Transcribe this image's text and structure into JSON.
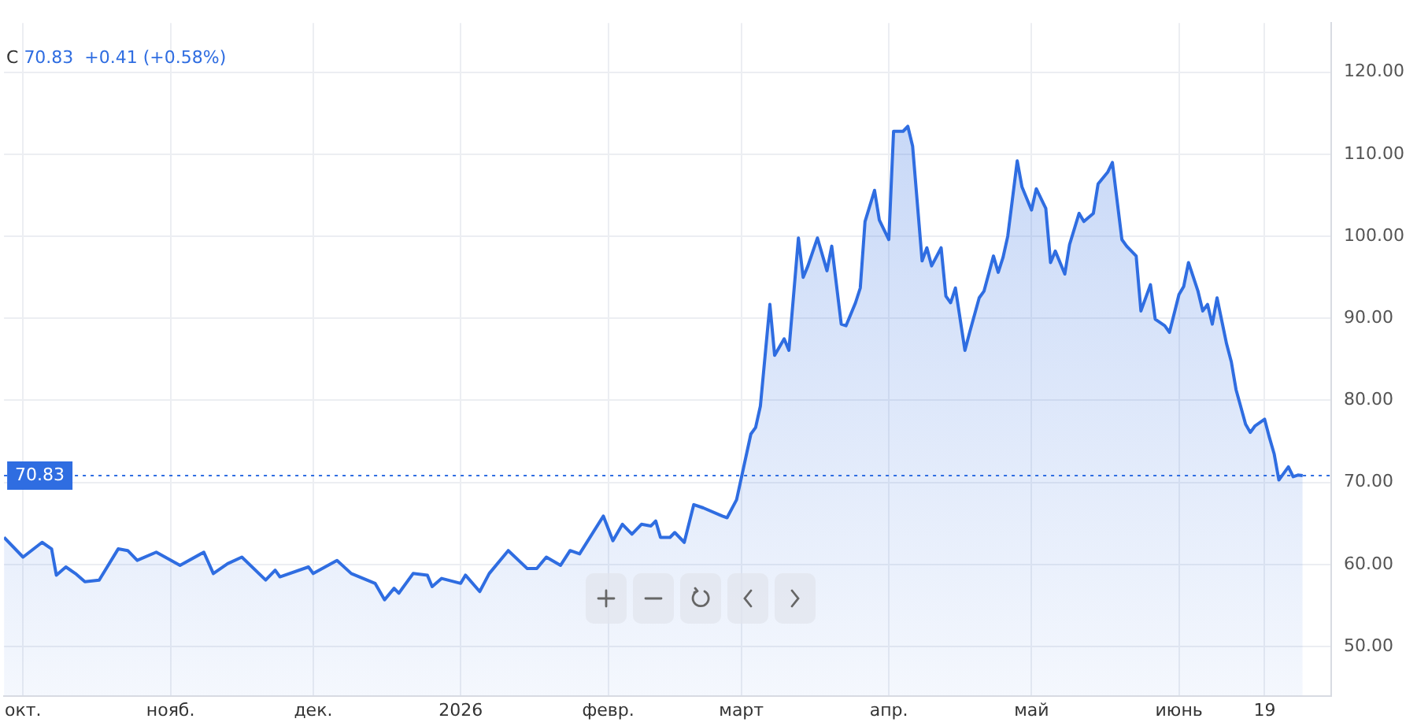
{
  "chart_data": {
    "type": "area",
    "title": "C",
    "subtitle": "70.83  +0.41 (+0.58%)",
    "x": [
      "2025-09-27",
      "2025-10-01",
      "2025-10-05",
      "2025-10-07",
      "2025-10-08",
      "2025-10-10",
      "2025-10-12",
      "2025-10-14",
      "2025-10-17",
      "2025-10-21",
      "2025-10-23",
      "2025-10-25",
      "2025-10-29",
      "2025-11-03",
      "2025-11-08",
      "2025-11-10",
      "2025-11-13",
      "2025-11-16",
      "2025-11-21",
      "2025-11-23",
      "2025-11-24",
      "2025-11-30",
      "2025-12-01",
      "2025-12-06",
      "2025-12-09",
      "2025-12-14",
      "2025-12-16",
      "2025-12-18",
      "2025-12-19",
      "2025-12-22",
      "2025-12-25",
      "2025-12-26",
      "2025-12-28",
      "2026-01-01",
      "2026-01-02",
      "2026-01-05",
      "2026-01-07",
      "2026-01-11",
      "2026-01-15",
      "2026-01-17",
      "2026-01-19",
      "2026-01-22",
      "2026-01-24",
      "2026-01-26",
      "2026-01-31",
      "2026-02-02",
      "2026-02-04",
      "2026-02-06",
      "2026-02-08",
      "2026-02-10",
      "2026-02-11",
      "2026-02-12",
      "2026-02-14",
      "2026-02-15",
      "2026-02-17",
      "2026-02-19",
      "2026-02-21",
      "2026-02-25",
      "2026-02-26",
      "2026-02-28",
      "2026-03-03",
      "2026-03-04",
      "2026-03-05",
      "2026-03-07",
      "2026-03-08",
      "2026-03-10",
      "2026-03-11",
      "2026-03-13",
      "2026-03-14",
      "2026-03-15",
      "2026-03-17",
      "2026-03-19",
      "2026-03-20",
      "2026-03-22",
      "2026-03-23",
      "2026-03-25",
      "2026-03-26",
      "2026-03-27",
      "2026-03-29",
      "2026-03-30",
      "2026-04-01",
      "2026-04-02",
      "2026-04-04",
      "2026-04-05",
      "2026-04-06",
      "2026-04-08",
      "2026-04-09",
      "2026-04-10",
      "2026-04-12",
      "2026-04-13",
      "2026-04-14",
      "2026-04-15",
      "2026-04-17",
      "2026-04-18",
      "2026-04-20",
      "2026-04-21",
      "2026-04-23",
      "2026-04-24",
      "2026-04-25",
      "2026-04-26",
      "2026-04-28",
      "2026-04-29",
      "2026-05-01",
      "2026-05-02",
      "2026-05-04",
      "2026-05-05",
      "2026-05-06",
      "2026-05-08",
      "2026-05-09",
      "2026-05-11",
      "2026-05-12",
      "2026-05-14",
      "2026-05-15",
      "2026-05-17",
      "2026-05-18",
      "2026-05-20",
      "2026-05-21",
      "2026-05-23",
      "2026-05-24",
      "2026-05-26",
      "2026-05-27",
      "2026-05-29",
      "2026-05-30",
      "2026-06-01",
      "2026-06-02",
      "2026-06-03",
      "2026-06-05",
      "2026-06-06",
      "2026-06-07",
      "2026-06-08",
      "2026-06-09",
      "2026-06-11",
      "2026-06-12",
      "2026-06-13",
      "2026-06-15",
      "2026-06-16",
      "2026-06-17",
      "2026-06-19",
      "2026-06-20",
      "2026-06-21",
      "2026-06-22",
      "2026-06-24",
      "2026-06-25",
      "2026-06-26",
      "2026-06-27"
    ],
    "series": [
      {
        "color": "#2f6de1",
        "values": [
          63.3,
          60.9,
          62.7,
          61.9,
          58.7,
          59.7,
          58.9,
          57.9,
          58.1,
          61.9,
          61.7,
          60.5,
          61.5,
          59.9,
          61.5,
          58.9,
          60.1,
          60.9,
          58.1,
          59.3,
          58.5,
          59.7,
          58.9,
          60.5,
          58.9,
          57.7,
          55.7,
          57.1,
          56.5,
          58.9,
          58.7,
          57.3,
          58.3,
          57.7,
          58.7,
          56.7,
          58.9,
          61.7,
          59.5,
          59.5,
          60.9,
          59.9,
          61.7,
          61.3,
          65.9,
          62.9,
          64.9,
          63.7,
          64.9,
          64.7,
          65.3,
          63.3,
          63.3,
          63.9,
          62.7,
          67.3,
          66.9,
          65.9,
          65.7,
          67.9,
          75.9,
          76.7,
          79.3,
          91.7,
          85.5,
          87.5,
          86.1,
          99.8,
          95.0,
          96.4,
          99.8,
          95.8,
          98.8,
          89.3,
          89.1,
          91.9,
          93.7,
          101.8,
          105.6,
          102.0,
          99.6,
          112.8,
          112.8,
          113.4,
          111.0,
          97.0,
          98.6,
          96.4,
          98.6,
          92.7,
          91.9,
          93.7,
          86.1,
          88.3,
          92.5,
          93.3,
          97.6,
          95.6,
          97.4,
          100.0,
          109.2,
          106.0,
          103.2,
          105.8,
          103.4,
          96.8,
          98.2,
          95.4,
          99.0,
          102.8,
          101.8,
          102.8,
          106.4,
          107.8,
          109.0,
          99.6,
          98.8,
          97.6,
          90.9,
          94.1,
          89.9,
          89.1,
          88.3,
          92.9,
          93.9,
          96.8,
          93.3,
          90.9,
          91.7,
          89.3,
          92.5,
          86.9,
          84.7,
          81.3,
          77.1,
          76.1,
          76.9,
          77.7,
          75.5,
          73.5,
          70.3,
          71.9,
          70.7,
          70.9,
          70.83
        ]
      }
    ],
    "xlim": [
      "2025-09-27",
      "2026-07-03"
    ],
    "xticks": [
      {
        "value": "2025-10-01",
        "label": "окт."
      },
      {
        "value": "2025-11-01",
        "label": "нояб."
      },
      {
        "value": "2025-12-01",
        "label": "дек."
      },
      {
        "value": "2026-01-01",
        "label": "2026"
      },
      {
        "value": "2026-02-01",
        "label": "февр."
      },
      {
        "value": "2026-03-01",
        "label": "март"
      },
      {
        "value": "2026-04-01",
        "label": "апр."
      },
      {
        "value": "2026-05-01",
        "label": "май"
      },
      {
        "value": "2026-06-01",
        "label": "июнь"
      },
      {
        "value": "2026-06-19",
        "label": "19"
      }
    ],
    "ylim": [
      44,
      126
    ],
    "yticks": [
      {
        "value": 50,
        "label": "50.00"
      },
      {
        "value": 60,
        "label": "60.00"
      },
      {
        "value": 70,
        "label": "70.00"
      },
      {
        "value": 80,
        "label": "80.00"
      },
      {
        "value": 90,
        "label": "90.00"
      },
      {
        "value": 100,
        "label": "100.00"
      },
      {
        "value": 110,
        "label": "110.00"
      },
      {
        "value": 120,
        "label": "120.00"
      }
    ],
    "ref_lines": [
      {
        "axis": "y",
        "value": 70.83,
        "label": "70.83",
        "color": "#2f6de1",
        "line_style": "dotted"
      }
    ],
    "grid": true,
    "marker": "none",
    "line_style": "solid",
    "legend": false
  }
}
